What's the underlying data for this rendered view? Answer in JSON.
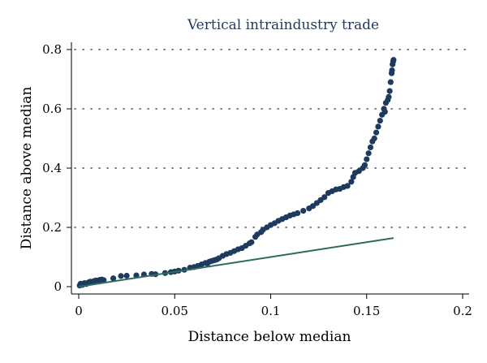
{
  "chart_data": {
    "type": "scatter",
    "title": "Vertical intraindustry trade",
    "xlabel": "Distance below median",
    "ylabel": "Distance above median",
    "xlim": [
      0,
      0.2
    ],
    "ylim": [
      0,
      0.8
    ],
    "xticks": [
      0,
      0.05,
      0.1,
      0.15,
      0.2
    ],
    "xtick_labels": [
      "0",
      "0.05",
      "0.1",
      "0.15",
      "0.2"
    ],
    "yticks": [
      0,
      0.2,
      0.4,
      0.6,
      0.8
    ],
    "ytick_labels": [
      "0",
      "0.2",
      "0.4",
      "0.6",
      "0.8"
    ],
    "grid": "horizontal dotted",
    "legend": "none",
    "colors": {
      "points": "#1f3a5f",
      "line": "#2e6b5e",
      "title": "#1f3a5f"
    },
    "series": [
      {
        "kind": "scatter",
        "points": [
          [
            0.0005,
            0.004
          ],
          [
            0.001,
            0.01
          ],
          [
            0.002,
            0.006
          ],
          [
            0.003,
            0.012
          ],
          [
            0.004,
            0.009
          ],
          [
            0.005,
            0.014
          ],
          [
            0.006,
            0.017
          ],
          [
            0.007,
            0.015
          ],
          [
            0.008,
            0.019
          ],
          [
            0.009,
            0.021
          ],
          [
            0.01,
            0.02
          ],
          [
            0.011,
            0.023
          ],
          [
            0.012,
            0.024
          ],
          [
            0.013,
            0.022
          ],
          [
            0.018,
            0.028
          ],
          [
            0.022,
            0.036
          ],
          [
            0.025,
            0.037
          ],
          [
            0.03,
            0.038
          ],
          [
            0.034,
            0.041
          ],
          [
            0.038,
            0.043
          ],
          [
            0.04,
            0.042
          ],
          [
            0.045,
            0.046
          ],
          [
            0.048,
            0.049
          ],
          [
            0.05,
            0.051
          ],
          [
            0.052,
            0.054
          ],
          [
            0.055,
            0.057
          ],
          [
            0.058,
            0.064
          ],
          [
            0.06,
            0.066
          ],
          [
            0.062,
            0.07
          ],
          [
            0.064,
            0.075
          ],
          [
            0.066,
            0.08
          ],
          [
            0.067,
            0.078
          ],
          [
            0.068,
            0.084
          ],
          [
            0.069,
            0.086
          ],
          [
            0.07,
            0.088
          ],
          [
            0.071,
            0.09
          ],
          [
            0.072,
            0.092
          ],
          [
            0.073,
            0.096
          ],
          [
            0.075,
            0.104
          ],
          [
            0.077,
            0.11
          ],
          [
            0.079,
            0.114
          ],
          [
            0.081,
            0.12
          ],
          [
            0.083,
            0.126
          ],
          [
            0.085,
            0.13
          ],
          [
            0.087,
            0.138
          ],
          [
            0.089,
            0.146
          ],
          [
            0.09,
            0.15
          ],
          [
            0.092,
            0.168
          ],
          [
            0.093,
            0.176
          ],
          [
            0.095,
            0.184
          ],
          [
            0.096,
            0.192
          ],
          [
            0.098,
            0.2
          ],
          [
            0.1,
            0.208
          ],
          [
            0.102,
            0.214
          ],
          [
            0.104,
            0.222
          ],
          [
            0.106,
            0.228
          ],
          [
            0.108,
            0.234
          ],
          [
            0.11,
            0.24
          ],
          [
            0.112,
            0.244
          ],
          [
            0.114,
            0.248
          ],
          [
            0.117,
            0.256
          ],
          [
            0.12,
            0.264
          ],
          [
            0.122,
            0.272
          ],
          [
            0.124,
            0.282
          ],
          [
            0.126,
            0.292
          ],
          [
            0.128,
            0.302
          ],
          [
            0.13,
            0.316
          ],
          [
            0.132,
            0.322
          ],
          [
            0.134,
            0.328
          ],
          [
            0.136,
            0.33
          ],
          [
            0.138,
            0.336
          ],
          [
            0.14,
            0.34
          ],
          [
            0.142,
            0.354
          ],
          [
            0.143,
            0.37
          ],
          [
            0.144,
            0.384
          ],
          [
            0.146,
            0.39
          ],
          [
            0.148,
            0.4
          ],
          [
            0.149,
            0.41
          ],
          [
            0.15,
            0.43
          ],
          [
            0.151,
            0.45
          ],
          [
            0.152,
            0.47
          ],
          [
            0.153,
            0.49
          ],
          [
            0.154,
            0.5
          ],
          [
            0.155,
            0.52
          ],
          [
            0.156,
            0.54
          ],
          [
            0.157,
            0.56
          ],
          [
            0.158,
            0.58
          ],
          [
            0.159,
            0.6
          ],
          [
            0.16,
            0.62
          ],
          [
            0.161,
            0.63
          ],
          [
            0.162,
            0.66
          ],
          [
            0.1625,
            0.69
          ],
          [
            0.163,
            0.72
          ],
          [
            0.1635,
            0.75
          ],
          [
            0.164,
            0.765
          ],
          [
            0.1638,
            0.76
          ],
          [
            0.1632,
            0.73
          ],
          [
            0.1615,
            0.64
          ],
          [
            0.1595,
            0.59
          ]
        ]
      },
      {
        "kind": "line",
        "x": [
          0,
          0.164
        ],
        "y": [
          0,
          0.164
        ]
      }
    ]
  }
}
